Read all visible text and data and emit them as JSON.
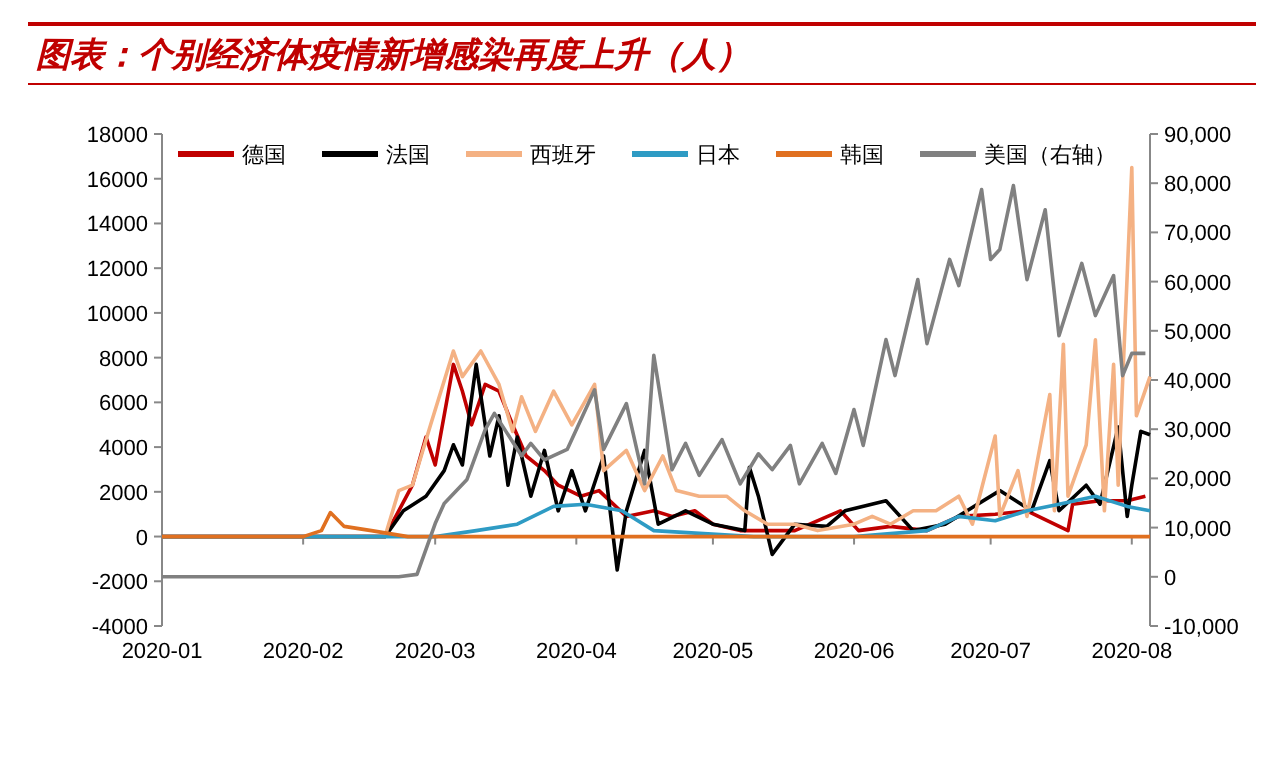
{
  "chart_data": {
    "type": "line",
    "title": "图表：个别经济体疫情新增感染再度上升（人）",
    "legend": "top",
    "grid": false,
    "xlim": [
      "2020-01-01",
      "2020-08-05"
    ],
    "xticks": [
      "2020-01",
      "2020-02",
      "2020-03",
      "2020-04",
      "2020-05",
      "2020-06",
      "2020-07",
      "2020-08"
    ],
    "ylim": [
      -4000,
      18000
    ],
    "yticks": [
      -4000,
      -2000,
      0,
      2000,
      4000,
      6000,
      8000,
      10000,
      12000,
      14000,
      16000,
      18000
    ],
    "y2lim": [
      -10000,
      90000
    ],
    "y2ticks": [
      {
        "value": -10000,
        "label": "-10,000"
      },
      0,
      {
        "value": 10000,
        "label": "10,000"
      },
      {
        "value": 20000,
        "label": "20,000"
      },
      {
        "value": 30000,
        "label": "30,000"
      },
      {
        "value": 40000,
        "label": "40,000"
      },
      {
        "value": 50000,
        "label": "50,000"
      },
      {
        "value": 60000,
        "label": "60,000"
      },
      {
        "value": 70000,
        "label": "70,000"
      },
      {
        "value": 80000,
        "label": "80,000"
      },
      {
        "value": 90000,
        "label": "90,000"
      }
    ],
    "series": [
      {
        "name": "德国",
        "color": "#c00000",
        "x": [
          "2020-01-01",
          "2020-02-19",
          "2020-02-25",
          "2020-02-28",
          "2020-03-01",
          "2020-03-05",
          "2020-03-07",
          "2020-03-09",
          "2020-03-12",
          "2020-03-15",
          "2020-03-18",
          "2020-03-21",
          "2020-03-25",
          "2020-03-28",
          "2020-04-02",
          "2020-04-06",
          "2020-04-12",
          "2020-04-18",
          "2020-04-22",
          "2020-04-27",
          "2020-05-01",
          "2020-05-07",
          "2020-05-13",
          "2020-05-19",
          "2020-05-29",
          "2020-06-02",
          "2020-06-09",
          "2020-06-17",
          "2020-06-24",
          "2020-07-02",
          "2020-07-09",
          "2020-07-18",
          "2020-07-19",
          "2020-07-25",
          "2020-07-31",
          "2020-08-04"
        ],
        "values": [
          0,
          0,
          2300,
          4450,
          3200,
          7700,
          6500,
          5000,
          6800,
          6500,
          5000,
          3600,
          2950,
          2300,
          1800,
          2050,
          900,
          1150,
          900,
          1150,
          550,
          270,
          270,
          270,
          1150,
          270,
          450,
          270,
          900,
          1000,
          1150,
          270,
          1450,
          1600,
          1600,
          1800
        ]
      },
      {
        "name": "法国",
        "color": "#000000",
        "x": [
          "2020-01-01",
          "2020-02-19",
          "2020-02-23",
          "2020-02-28",
          "2020-03-03",
          "2020-03-05",
          "2020-03-07",
          "2020-03-10",
          "2020-03-13",
          "2020-03-15",
          "2020-03-17",
          "2020-03-19",
          "2020-03-22",
          "2020-03-25",
          "2020-03-28",
          "2020-03-31",
          "2020-04-03",
          "2020-04-07",
          "2020-04-10",
          "2020-04-12",
          "2020-04-16",
          "2020-04-19",
          "2020-04-25",
          "2020-05-01",
          "2020-05-08",
          "2020-05-09",
          "2020-05-11",
          "2020-05-14",
          "2020-05-19",
          "2020-05-26",
          "2020-05-30",
          "2020-06-08",
          "2020-06-14",
          "2020-06-21",
          "2020-07-03",
          "2020-07-10",
          "2020-07-14",
          "2020-07-16",
          "2020-07-22",
          "2020-07-25",
          "2020-07-29",
          "2020-07-31",
          "2020-08-01",
          "2020-08-03",
          "2020-08-05"
        ],
        "values": [
          0,
          0,
          1150,
          1800,
          2950,
          4100,
          3200,
          7700,
          3600,
          5400,
          2300,
          4450,
          1800,
          3850,
          1150,
          2950,
          1150,
          3600,
          -1500,
          1150,
          3850,
          550,
          1150,
          550,
          270,
          3100,
          1800,
          -800,
          550,
          450,
          1150,
          1600,
          270,
          550,
          2050,
          1150,
          3400,
          1150,
          2300,
          1450,
          4900,
          900,
          2300,
          4700,
          4550
        ]
      },
      {
        "name": "西班牙",
        "color": "#f4b183",
        "x": [
          "2020-01-01",
          "2020-02-19",
          "2020-02-22",
          "2020-02-25",
          "2020-02-29",
          "2020-03-05",
          "2020-03-07",
          "2020-03-11",
          "2020-03-15",
          "2020-03-18",
          "2020-03-20",
          "2020-03-23",
          "2020-03-27",
          "2020-03-31",
          "2020-04-05",
          "2020-04-07",
          "2020-04-12",
          "2020-04-16",
          "2020-04-20",
          "2020-04-23",
          "2020-04-28",
          "2020-05-04",
          "2020-05-08",
          "2020-05-13",
          "2020-05-19",
          "2020-05-24",
          "2020-06-01",
          "2020-06-05",
          "2020-06-09",
          "2020-06-14",
          "2020-06-19",
          "2020-06-24",
          "2020-06-27",
          "2020-07-02",
          "2020-07-03",
          "2020-07-07",
          "2020-07-09",
          "2020-07-14",
          "2020-07-15",
          "2020-07-17",
          "2020-07-18",
          "2020-07-22",
          "2020-07-24",
          "2020-07-26",
          "2020-07-28",
          "2020-07-29",
          "2020-08-01",
          "2020-08-02",
          "2020-08-05"
        ],
        "values": [
          0,
          0,
          2050,
          2300,
          5000,
          8300,
          7150,
          8300,
          6800,
          4700,
          6250,
          4700,
          6500,
          5000,
          6800,
          2950,
          3850,
          2050,
          3600,
          2050,
          1800,
          1800,
          1150,
          550,
          550,
          270,
          550,
          900,
          550,
          1150,
          1150,
          1800,
          550,
          4500,
          900,
          2950,
          900,
          6350,
          1150,
          8600,
          1800,
          4100,
          8800,
          1150,
          7700,
          2300,
          16500,
          5400,
          7150
        ]
      },
      {
        "name": "日本",
        "color": "#2e9bc4",
        "x": [
          "2020-01-01",
          "2020-03-01",
          "2020-03-10",
          "2020-03-19",
          "2020-03-27",
          "2020-04-03",
          "2020-04-11",
          "2020-04-18",
          "2020-05-10",
          "2020-06-01",
          "2020-06-17",
          "2020-06-24",
          "2020-07-02",
          "2020-07-09",
          "2020-07-16",
          "2020-07-24",
          "2020-07-31",
          "2020-08-05"
        ],
        "values": [
          0,
          0,
          270,
          550,
          1350,
          1450,
          1150,
          270,
          0,
          0,
          270,
          900,
          700,
          1150,
          1450,
          1800,
          1350,
          1150
        ]
      },
      {
        "name": "韩国",
        "color": "#e07020",
        "x": [
          "2020-01-01",
          "2020-02-01",
          "2020-02-05",
          "2020-02-07",
          "2020-02-10",
          "2020-02-16",
          "2020-02-24",
          "2020-08-05"
        ],
        "values": [
          0,
          0,
          270,
          1070,
          450,
          270,
          0,
          0
        ]
      },
      {
        "name": "美国（右轴）",
        "color": "#808080",
        "axis": "y2",
        "x": [
          "2020-01-01",
          "2020-02-22",
          "2020-02-26",
          "2020-03-01",
          "2020-03-03",
          "2020-03-08",
          "2020-03-12",
          "2020-03-14",
          "2020-03-20",
          "2020-03-22",
          "2020-03-25",
          "2020-03-30",
          "2020-04-05",
          "2020-04-07",
          "2020-04-12",
          "2020-04-16",
          "2020-04-18",
          "2020-04-22",
          "2020-04-25",
          "2020-04-28",
          "2020-05-03",
          "2020-05-07",
          "2020-05-11",
          "2020-05-14",
          "2020-05-18",
          "2020-05-20",
          "2020-05-25",
          "2020-05-28",
          "2020-06-01",
          "2020-06-03",
          "2020-06-08",
          "2020-06-10",
          "2020-06-15",
          "2020-06-17",
          "2020-06-22",
          "2020-06-24",
          "2020-06-29",
          "2020-07-01",
          "2020-07-03",
          "2020-07-06",
          "2020-07-09",
          "2020-07-13",
          "2020-07-16",
          "2020-07-21",
          "2020-07-24",
          "2020-07-28",
          "2020-07-30",
          "2020-08-01",
          "2020-08-04"
        ],
        "values": [
          0,
          0,
          500,
          10800,
          14900,
          19800,
          29900,
          33200,
          24600,
          27100,
          23800,
          25900,
          38000,
          25900,
          35200,
          18900,
          45000,
          21800,
          27100,
          20600,
          27900,
          18900,
          25000,
          21800,
          26700,
          18900,
          27100,
          21000,
          34000,
          26700,
          48200,
          40900,
          60400,
          47400,
          64500,
          59200,
          78700,
          64500,
          66500,
          79500,
          60400,
          74600,
          49000,
          63700,
          53100,
          61200,
          40900,
          45400,
          45400
        ]
      }
    ]
  }
}
